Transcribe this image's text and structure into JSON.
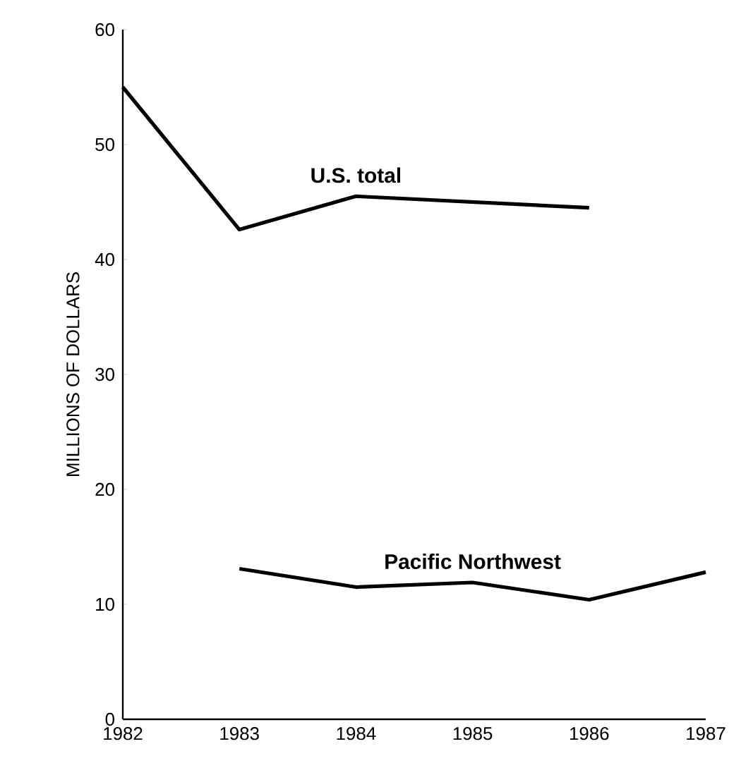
{
  "chart_data": {
    "type": "line",
    "ylabel": "MILLIONS OF DOLLARS",
    "series": [
      {
        "name": "U.S. total",
        "color": "#000000",
        "x": [
          1982,
          1983,
          1984,
          1986
        ],
        "values": [
          55,
          42.6,
          45.5,
          44.5
        ]
      },
      {
        "name": "Pacific Northwest",
        "color": "#000000",
        "x": [
          1983,
          1984,
          1985,
          1986,
          1987
        ],
        "values": [
          13.1,
          11.5,
          11.9,
          10.4,
          12.8
        ]
      }
    ],
    "xlim": [
      1982,
      1987
    ],
    "xticks": [
      1982,
      1983,
      1984,
      1985,
      1986,
      1987
    ],
    "ylim": [
      0,
      60
    ],
    "yticks": [
      0,
      10,
      20,
      30,
      40,
      50,
      60
    ],
    "grid": false,
    "legend": false,
    "marker": "none",
    "line_style": "solid"
  }
}
